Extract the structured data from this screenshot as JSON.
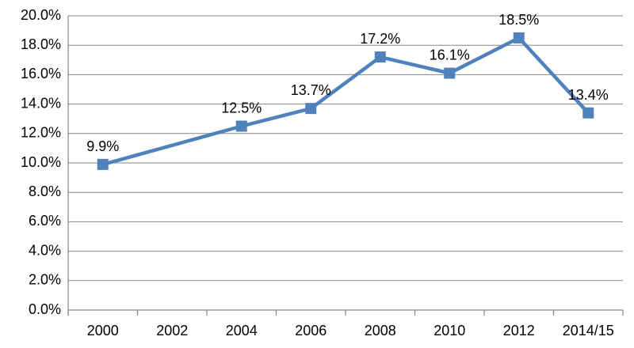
{
  "chart_data": {
    "type": "line",
    "categories": [
      "2000",
      "2002",
      "2004",
      "2006",
      "2008",
      "2010",
      "2012",
      "2014/15"
    ],
    "series": [
      {
        "values": [
          9.9,
          null,
          12.5,
          13.7,
          17.2,
          16.1,
          18.5,
          13.4
        ],
        "labels": [
          "9.9%",
          "",
          "12.5%",
          "13.7%",
          "17.2%",
          "16.1%",
          "18.5%",
          "13.4%"
        ]
      }
    ],
    "y_ticks": [
      "0.0%",
      "2.0%",
      "4.0%",
      "6.0%",
      "8.0%",
      "10.0%",
      "12.0%",
      "14.0%",
      "16.0%",
      "18.0%",
      "20.0%"
    ],
    "ylim": [
      0,
      20
    ],
    "y_step": 2,
    "grid": "horizontal",
    "marker": "square",
    "colors": {
      "series": "#4F81BD",
      "grid": "#868686"
    },
    "title": "",
    "xlabel": "",
    "ylabel": ""
  }
}
